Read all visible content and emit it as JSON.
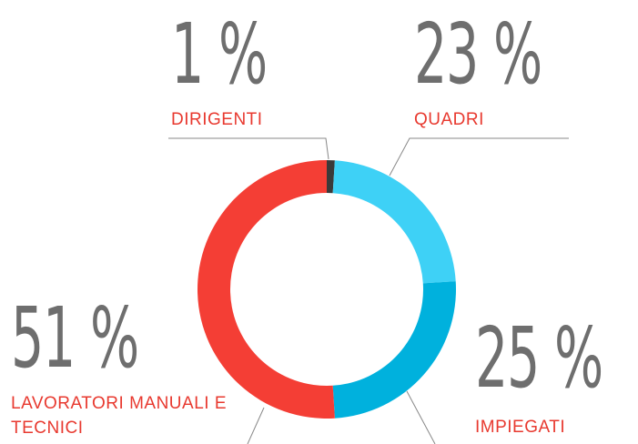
{
  "chart_data": {
    "type": "donut",
    "categories": [
      "DIRIGENTI",
      "QUADRI",
      "IMPIEGATI",
      "LAVORATORI MANUALI E TECNICI"
    ],
    "values": [
      1,
      23,
      25,
      51
    ],
    "value_labels": [
      "1 %",
      "23 %",
      "25 %",
      "51 %"
    ],
    "colors": [
      "#3a3a3a",
      "#3ed1f6",
      "#00b1dd",
      "#f43e35"
    ]
  }
}
